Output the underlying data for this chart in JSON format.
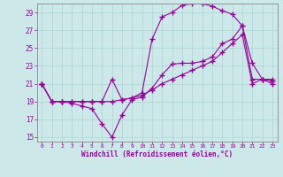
{
  "xlabel": "Windchill (Refroidissement éolien,°C)",
  "background_color": "#cce8e8",
  "line_color": "#990099",
  "grid_color": "#aad4d4",
  "xlim": [
    -0.5,
    23.5
  ],
  "ylim": [
    14.5,
    30.0
  ],
  "xticks": [
    0,
    1,
    2,
    3,
    4,
    5,
    6,
    7,
    8,
    9,
    10,
    11,
    12,
    13,
    14,
    15,
    16,
    17,
    18,
    19,
    20,
    21,
    22,
    23
  ],
  "yticks": [
    15,
    17,
    19,
    21,
    23,
    25,
    27,
    29
  ],
  "s1_x": [
    0,
    1,
    2,
    3,
    4,
    5,
    6,
    7,
    8,
    9,
    10,
    11,
    12,
    13,
    14,
    15,
    16,
    17,
    18,
    19,
    20,
    21,
    22,
    23
  ],
  "s1_y": [
    21,
    19,
    19,
    18.8,
    18.5,
    18.2,
    16.5,
    15.0,
    17.5,
    19.2,
    19.5,
    20.5,
    22,
    23.2,
    23.3,
    23.3,
    23.5,
    24.0,
    25.5,
    26.0,
    27.5,
    21.5,
    21.5,
    21.3
  ],
  "s2_x": [
    0,
    1,
    2,
    3,
    4,
    5,
    6,
    7,
    8,
    9,
    10,
    11,
    12,
    13,
    14,
    15,
    16,
    17,
    18,
    19,
    20,
    21,
    22,
    23
  ],
  "s2_y": [
    21,
    19,
    19,
    19.0,
    19.0,
    19.0,
    19.0,
    19.0,
    19.2,
    19.4,
    19.7,
    20.3,
    21.0,
    21.5,
    22.0,
    22.5,
    23.0,
    23.5,
    24.5,
    25.5,
    26.5,
    21.0,
    21.5,
    21.5
  ],
  "s3_x": [
    0,
    1,
    2,
    3,
    4,
    5,
    6,
    7,
    8,
    9,
    10,
    11,
    12,
    13,
    14,
    15,
    16,
    17,
    18,
    19,
    20,
    21,
    22,
    23
  ],
  "s3_y": [
    21,
    19,
    19,
    19.0,
    19.0,
    19.0,
    19.0,
    21.5,
    19.2,
    19.4,
    20.0,
    26.0,
    28.5,
    29.0,
    29.8,
    30.0,
    30.0,
    29.7,
    29.2,
    28.8,
    27.5,
    23.3,
    21.5,
    21.0
  ]
}
